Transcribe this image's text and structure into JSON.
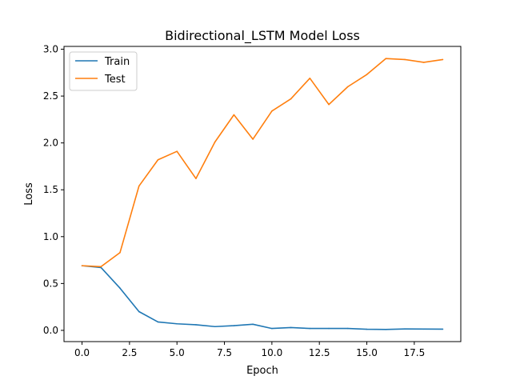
{
  "chart_data": {
    "type": "line",
    "title": "Bidirectional_LSTM Model Loss",
    "xlabel": "Epoch",
    "ylabel": "Loss",
    "x": [
      0,
      1,
      2,
      3,
      4,
      5,
      6,
      7,
      8,
      9,
      10,
      11,
      12,
      13,
      14,
      15,
      16,
      17,
      18,
      19
    ],
    "xlim": [
      -0.95,
      19.95
    ],
    "ylim": [
      -0.12,
      3.03
    ],
    "xticks": [
      0.0,
      2.5,
      5.0,
      7.5,
      10.0,
      12.5,
      15.0,
      17.5
    ],
    "xtick_labels": [
      "0.0",
      "2.5",
      "5.0",
      "7.5",
      "10.0",
      "12.5",
      "15.0",
      "17.5"
    ],
    "yticks": [
      0.0,
      0.5,
      1.0,
      1.5,
      2.0,
      2.5,
      3.0
    ],
    "ytick_labels": [
      "0.0",
      "0.5",
      "1.0",
      "1.5",
      "2.0",
      "2.5",
      "3.0"
    ],
    "grid": false,
    "legend_position": "top-left",
    "series": [
      {
        "name": "Train",
        "color": "#1f77b4",
        "values": [
          0.69,
          0.67,
          0.45,
          0.2,
          0.09,
          0.07,
          0.06,
          0.04,
          0.05,
          0.065,
          0.02,
          0.03,
          0.02,
          0.02,
          0.02,
          0.012,
          0.01,
          0.015,
          0.014,
          0.013
        ]
      },
      {
        "name": "Test",
        "color": "#ff7f0e",
        "values": [
          0.69,
          0.68,
          0.83,
          1.54,
          1.82,
          1.91,
          1.62,
          2.01,
          2.3,
          2.04,
          2.34,
          2.47,
          2.69,
          2.41,
          2.6,
          2.73,
          2.9,
          2.89,
          2.86,
          2.89
        ]
      }
    ]
  }
}
